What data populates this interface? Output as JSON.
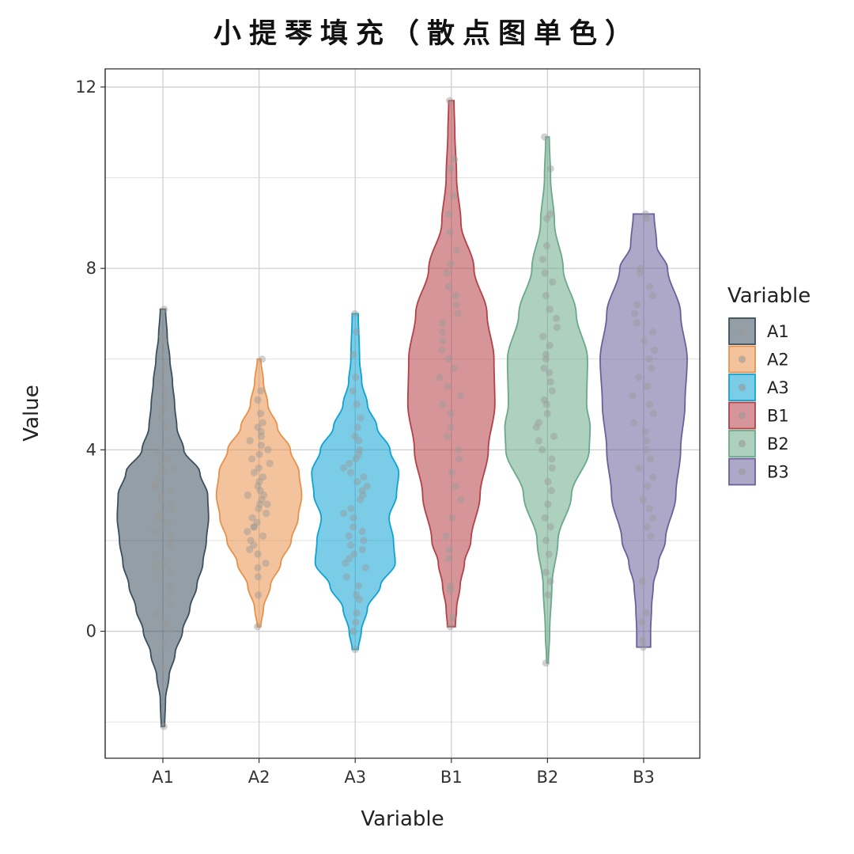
{
  "chart_data": {
    "type": "violin",
    "title": "小提琴填充（散点图单色）",
    "xlabel": "Variable",
    "ylabel": "Value",
    "ylim": [
      -2.8,
      12.4
    ],
    "yticks": [
      0,
      4,
      8,
      12
    ],
    "grid": true,
    "legend": {
      "title": "Variable",
      "position": "right"
    },
    "categories": [
      "A1",
      "A2",
      "A3",
      "B1",
      "B2",
      "B3"
    ],
    "colors": {
      "A1": "#3b4f5c",
      "A2": "#e8914a",
      "A3": "#0fa2d4",
      "B1": "#b54045",
      "B2": "#6aa98a",
      "B3": "#6a619a"
    },
    "point_color": "#999999",
    "series": [
      {
        "name": "A1",
        "min": -2.1,
        "max": 7.1,
        "density": [
          [
            -2.1,
            0.04
          ],
          [
            -1.5,
            0.06
          ],
          [
            -1.0,
            0.14
          ],
          [
            -0.5,
            0.28
          ],
          [
            0.0,
            0.45
          ],
          [
            0.5,
            0.62
          ],
          [
            1.0,
            0.78
          ],
          [
            1.5,
            0.92
          ],
          [
            2.0,
            1.0
          ],
          [
            2.5,
            1.05
          ],
          [
            3.0,
            1.03
          ],
          [
            3.5,
            0.85
          ],
          [
            4.0,
            0.48
          ],
          [
            4.5,
            0.32
          ],
          [
            5.0,
            0.27
          ],
          [
            5.5,
            0.22
          ],
          [
            6.0,
            0.16
          ],
          [
            6.5,
            0.1
          ],
          [
            7.1,
            0.06
          ]
        ],
        "points": [
          -2.1,
          -0.8,
          -0.3,
          0.0,
          0.1,
          0.2,
          0.4,
          0.6,
          0.7,
          0.9,
          1.0,
          1.2,
          1.3,
          1.4,
          1.5,
          1.5,
          1.7,
          1.9,
          2.0,
          2.1,
          2.2,
          2.3,
          2.4,
          2.5,
          2.5,
          2.6,
          2.7,
          2.8,
          2.9,
          3.0,
          3.1,
          3.2,
          3.2,
          3.3,
          3.4,
          3.5,
          3.6,
          3.7,
          3.8,
          3.9,
          4.0,
          4.2,
          4.5,
          4.7,
          4.9,
          5.1,
          5.3,
          5.5,
          5.8,
          6.1,
          6.4,
          6.5,
          7.1
        ]
      },
      {
        "name": "A2",
        "min": 0.1,
        "max": 6.0,
        "density": [
          [
            0.1,
            0.04
          ],
          [
            0.5,
            0.1
          ],
          [
            1.0,
            0.26
          ],
          [
            1.5,
            0.5
          ],
          [
            2.0,
            0.74
          ],
          [
            2.5,
            0.9
          ],
          [
            3.0,
            0.98
          ],
          [
            3.5,
            0.92
          ],
          [
            4.0,
            0.72
          ],
          [
            4.5,
            0.42
          ],
          [
            5.0,
            0.2
          ],
          [
            5.5,
            0.1
          ],
          [
            6.0,
            0.04
          ]
        ],
        "points": [
          0.1,
          0.8,
          1.2,
          1.4,
          1.5,
          1.7,
          1.8,
          1.9,
          2.0,
          2.1,
          2.2,
          2.3,
          2.3,
          2.4,
          2.5,
          2.6,
          2.7,
          2.8,
          2.8,
          2.9,
          3.0,
          3.0,
          3.1,
          3.2,
          3.3,
          3.4,
          3.5,
          3.6,
          3.7,
          3.8,
          3.9,
          4.0,
          4.1,
          4.2,
          4.3,
          4.4,
          4.5,
          4.6,
          4.8,
          5.1,
          5.3,
          6.0
        ]
      },
      {
        "name": "A3",
        "min": -0.4,
        "max": 7.0,
        "density": [
          [
            -0.4,
            0.07
          ],
          [
            0.0,
            0.14
          ],
          [
            0.5,
            0.28
          ],
          [
            1.0,
            0.58
          ],
          [
            1.5,
            0.92
          ],
          [
            2.0,
            0.88
          ],
          [
            2.5,
            0.78
          ],
          [
            3.0,
            0.95
          ],
          [
            3.5,
            1.0
          ],
          [
            4.0,
            0.8
          ],
          [
            4.5,
            0.5
          ],
          [
            5.0,
            0.28
          ],
          [
            5.5,
            0.15
          ],
          [
            6.0,
            0.1
          ],
          [
            7.0,
            0.07
          ]
        ],
        "points": [
          -0.4,
          0.0,
          0.2,
          0.4,
          0.7,
          0.8,
          1.0,
          1.2,
          1.4,
          1.5,
          1.6,
          1.7,
          1.8,
          1.9,
          2.0,
          2.1,
          2.2,
          2.3,
          2.5,
          2.6,
          2.7,
          2.9,
          3.0,
          3.1,
          3.2,
          3.3,
          3.4,
          3.5,
          3.6,
          3.7,
          3.8,
          3.9,
          4.0,
          4.2,
          4.3,
          4.5,
          4.7,
          5.0,
          5.3,
          5.6,
          6.1,
          6.6,
          7.0
        ]
      },
      {
        "name": "B1",
        "min": 0.1,
        "max": 11.7,
        "density": [
          [
            0.1,
            0.09
          ],
          [
            0.5,
            0.12
          ],
          [
            1.0,
            0.2
          ],
          [
            1.5,
            0.3
          ],
          [
            2.0,
            0.45
          ],
          [
            3.0,
            0.66
          ],
          [
            4.0,
            0.85
          ],
          [
            5.0,
            1.0
          ],
          [
            6.0,
            0.98
          ],
          [
            7.0,
            0.82
          ],
          [
            8.0,
            0.52
          ],
          [
            9.0,
            0.22
          ],
          [
            10.0,
            0.12
          ],
          [
            11.0,
            0.08
          ],
          [
            11.7,
            0.06
          ]
        ],
        "points": [
          0.1,
          0.3,
          0.9,
          1.0,
          1.6,
          1.8,
          2.1,
          2.5,
          2.9,
          3.2,
          3.5,
          3.8,
          4.0,
          4.3,
          4.5,
          4.8,
          5.0,
          5.2,
          5.4,
          5.6,
          5.8,
          6.0,
          6.2,
          6.4,
          6.6,
          6.8,
          7.0,
          7.2,
          7.4,
          7.6,
          7.9,
          8.1,
          8.4,
          8.8,
          9.2,
          9.6,
          10.2,
          10.4,
          11.7
        ]
      },
      {
        "name": "B2",
        "min": -0.7,
        "max": 10.9,
        "density": [
          [
            -0.7,
            0.02
          ],
          [
            0.0,
            0.05
          ],
          [
            1.0,
            0.1
          ],
          [
            2.0,
            0.24
          ],
          [
            3.0,
            0.55
          ],
          [
            4.0,
            0.96
          ],
          [
            4.5,
            0.98
          ],
          [
            5.0,
            0.9
          ],
          [
            6.0,
            0.92
          ],
          [
            7.0,
            0.66
          ],
          [
            8.0,
            0.36
          ],
          [
            9.0,
            0.16
          ],
          [
            10.0,
            0.07
          ],
          [
            10.9,
            0.04
          ]
        ],
        "points": [
          -0.7,
          0.8,
          1.1,
          1.3,
          1.7,
          2.0,
          2.3,
          2.5,
          2.8,
          3.1,
          3.3,
          3.6,
          3.8,
          4.0,
          4.2,
          4.3,
          4.5,
          4.6,
          4.8,
          5.0,
          5.1,
          5.3,
          5.5,
          5.7,
          5.8,
          6.0,
          6.1,
          6.3,
          6.5,
          6.7,
          6.9,
          7.1,
          7.4,
          7.7,
          7.9,
          8.2,
          8.5,
          9.1,
          9.2,
          10.2,
          10.9
        ]
      },
      {
        "name": "B3",
        "min": -0.35,
        "max": 9.2,
        "density": [
          [
            -0.35,
            0.16
          ],
          [
            0.0,
            0.16
          ],
          [
            0.5,
            0.18
          ],
          [
            1.0,
            0.22
          ],
          [
            1.5,
            0.34
          ],
          [
            2.0,
            0.5
          ],
          [
            3.0,
            0.74
          ],
          [
            4.0,
            0.85
          ],
          [
            5.0,
            0.95
          ],
          [
            6.0,
            1.0
          ],
          [
            7.0,
            0.85
          ],
          [
            8.0,
            0.55
          ],
          [
            8.5,
            0.3
          ],
          [
            9.2,
            0.24
          ]
        ],
        "points": [
          -0.35,
          -0.2,
          0.2,
          0.4,
          1.1,
          2.1,
          2.3,
          2.5,
          2.7,
          2.9,
          3.2,
          3.4,
          3.6,
          3.8,
          4.0,
          4.2,
          4.4,
          4.6,
          4.8,
          5.0,
          5.2,
          5.4,
          5.6,
          5.8,
          6.0,
          6.2,
          6.4,
          6.6,
          6.8,
          7.0,
          7.2,
          7.4,
          7.6,
          7.9,
          8.0,
          9.1,
          9.2
        ]
      }
    ]
  }
}
